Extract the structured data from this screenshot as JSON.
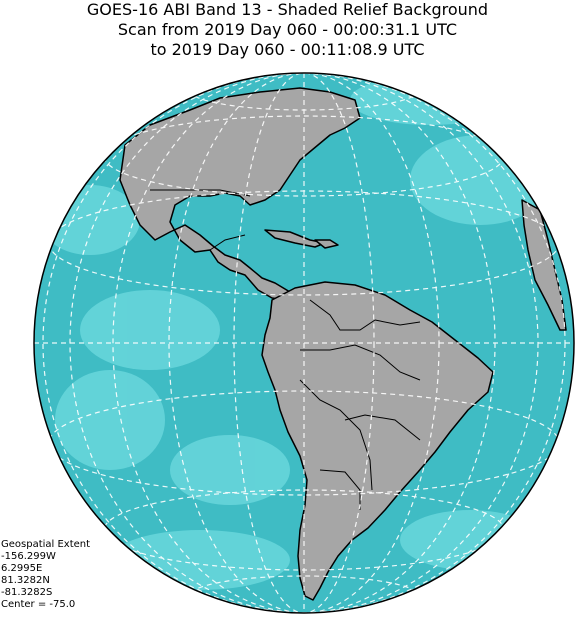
{
  "title": {
    "line1": "GOES-16 ABI Band 13 - Shaded Relief Background",
    "line2": "Scan from 2019 Day 060 - 00:00:31.1 UTC",
    "line3": "to 2019 Day 060 - 00:11:08.9 UTC"
  },
  "extent": {
    "heading": "Geospatial Extent",
    "west": "-156.299W",
    "east": "6.2995E",
    "north": "81.3282N",
    "south": "-81.3282S",
    "center": "Center = -75.0"
  },
  "colors": {
    "ocean": "#3fbcc4",
    "land": "#a6a6a6",
    "cloud": "#7fe6ea",
    "border": "#000000",
    "graticule": "#ffffff"
  }
}
